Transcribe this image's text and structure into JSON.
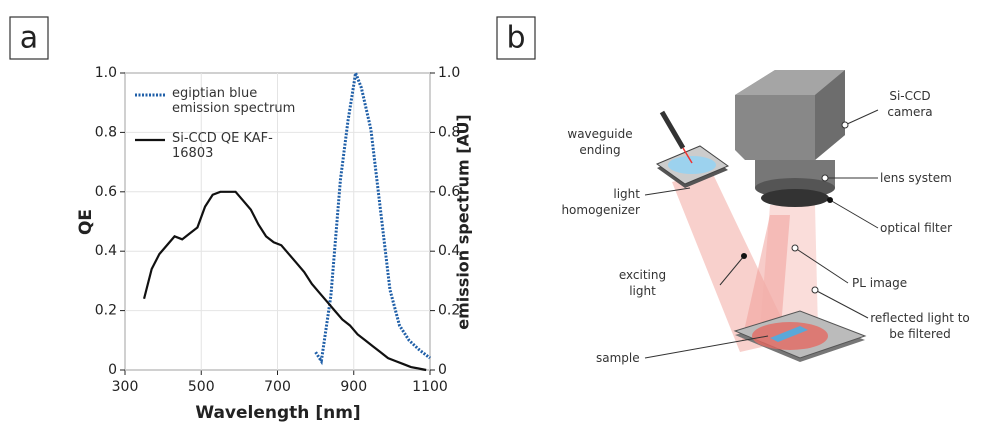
{
  "chart_data": {
    "type": "line",
    "panel": "a",
    "xlabel": "Wavelength [nm]",
    "ylabel": "QE",
    "y2label": "emission spectrum [AU]",
    "xlim": [
      300,
      1100
    ],
    "xticks": [
      300,
      500,
      700,
      900,
      1100
    ],
    "ylim": [
      0,
      1
    ],
    "yticks": [
      0,
      0.2,
      0.4,
      0.6,
      0.8,
      {
        "value": 1,
        "label": "1.0"
      }
    ],
    "y2lim": [
      0,
      1
    ],
    "y2ticks": [
      0,
      0.2,
      0.4,
      0.6,
      0.8,
      {
        "value": 1,
        "label": "1.0"
      }
    ],
    "series": [
      {
        "name": "egiptian blue emission spectrum",
        "color": "#1f5fa8",
        "dashed": true,
        "axis": "y2",
        "x": [
          800,
          815,
          840,
          865,
          885,
          905,
          920,
          945,
          970,
          995,
          1020,
          1045,
          1070,
          1100
        ],
        "values": [
          0.06,
          0.03,
          0.25,
          0.64,
          0.84,
          1.0,
          0.95,
          0.81,
          0.54,
          0.27,
          0.15,
          0.1,
          0.07,
          0.04
        ]
      },
      {
        "name": "Si-CCD QE KAF-16803",
        "color": "#111111",
        "dashed": false,
        "axis": "y",
        "x": [
          350,
          370,
          390,
          410,
          430,
          450,
          470,
          490,
          510,
          530,
          550,
          570,
          590,
          610,
          630,
          650,
          670,
          690,
          710,
          730,
          750,
          770,
          790,
          810,
          830,
          850,
          870,
          890,
          910,
          930,
          950,
          970,
          990,
          1010,
          1030,
          1050,
          1070,
          1090
        ],
        "values": [
          0.24,
          0.34,
          0.39,
          0.42,
          0.45,
          0.44,
          0.46,
          0.48,
          0.55,
          0.59,
          0.6,
          0.6,
          0.6,
          0.57,
          0.54,
          0.49,
          0.45,
          0.43,
          0.42,
          0.39,
          0.36,
          0.33,
          0.29,
          0.26,
          0.23,
          0.2,
          0.17,
          0.15,
          0.12,
          0.1,
          0.08,
          0.06,
          0.04,
          0.03,
          0.02,
          0.01,
          0.005,
          0
        ]
      }
    ]
  },
  "diagram": {
    "panel": "b",
    "labels": {
      "waveguide": "waveguide ending",
      "homogenizer": "light homogenizer",
      "exciting": "exciting light",
      "sample": "sample",
      "camera": "Si-CCD camera",
      "lens": "lens system",
      "filter": "optical filter",
      "pl": "PL image",
      "reflected": "reflected light to be filtered"
    }
  }
}
